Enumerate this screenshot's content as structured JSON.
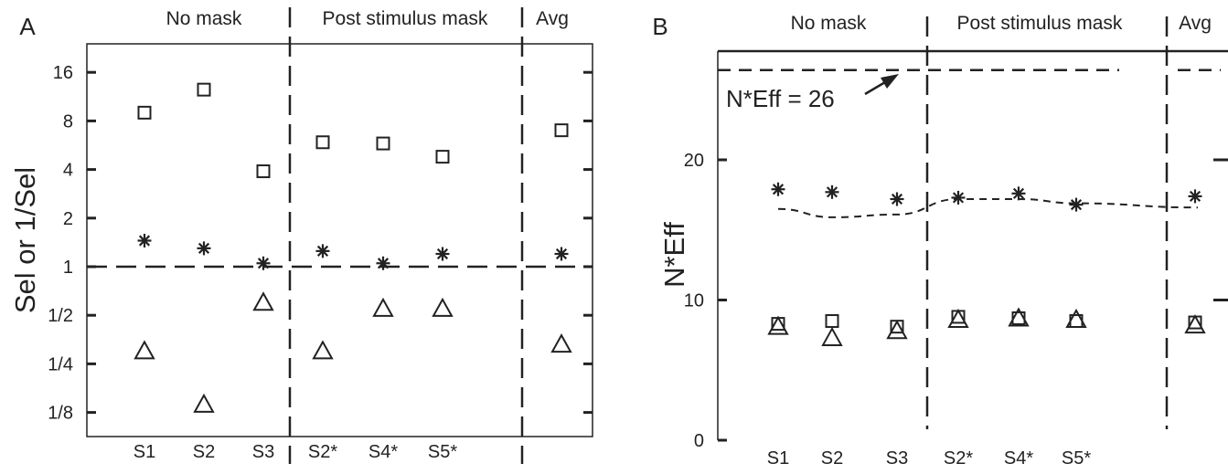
{
  "chart_data": [
    {
      "panel_label": "A",
      "type": "scatter",
      "ylabel": "Sel or 1/Sel",
      "yscale": "log2",
      "ylim": [
        0.09,
        24
      ],
      "yticks": [
        16,
        8,
        4,
        2,
        1,
        0.5,
        0.25,
        0.125
      ],
      "ytick_labels": [
        "16",
        "8",
        "4",
        "2",
        "1",
        "1/2",
        "1/4",
        "1/8"
      ],
      "sections": [
        "No mask",
        "Post stimulus mask",
        "Avg"
      ],
      "categories": [
        "S1",
        "S2",
        "S3",
        "S2*",
        "S4*",
        "S5*",
        ""
      ],
      "reference_line": 1,
      "series": [
        {
          "marker": "square",
          "values": [
            9,
            12.5,
            3.9,
            5.9,
            5.8,
            4.8,
            7
          ]
        },
        {
          "marker": "asterisk",
          "values": [
            1.45,
            1.3,
            1.05,
            1.25,
            1.05,
            1.2,
            1.2
          ]
        },
        {
          "marker": "triangle",
          "values": [
            0.3,
            0.14,
            0.6,
            0.3,
            0.55,
            0.55,
            0.33
          ]
        }
      ]
    },
    {
      "panel_label": "B",
      "type": "scatter",
      "ylabel": "N*Eff",
      "ylim": [
        0,
        28
      ],
      "yticks": [
        0,
        10,
        20
      ],
      "ytick_labels": [
        "0",
        "10",
        "20"
      ],
      "sections": [
        "No mask",
        "Post stimulus mask",
        "Avg"
      ],
      "categories": [
        "S1",
        "S2",
        "S3",
        "S2*",
        "S4*",
        "S5*",
        ""
      ],
      "annotation": "N*Eff = 26",
      "reference_value": 26.4,
      "series": [
        {
          "marker": "square",
          "values": [
            8.3,
            8.5,
            8.1,
            8.8,
            8.7,
            8.5,
            8.4
          ]
        },
        {
          "marker": "triangle",
          "values": [
            8.1,
            7.3,
            7.8,
            8.6,
            8.7,
            8.6,
            8.2
          ]
        },
        {
          "marker": "asterisk",
          "values": [
            17.9,
            17.7,
            17.2,
            17.3,
            17.6,
            16.8,
            17.4
          ]
        },
        {
          "marker": "dashed-curve",
          "values": [
            16.5,
            15.9,
            16.1,
            17.2,
            17.2,
            16.9,
            16.6
          ]
        }
      ]
    }
  ]
}
